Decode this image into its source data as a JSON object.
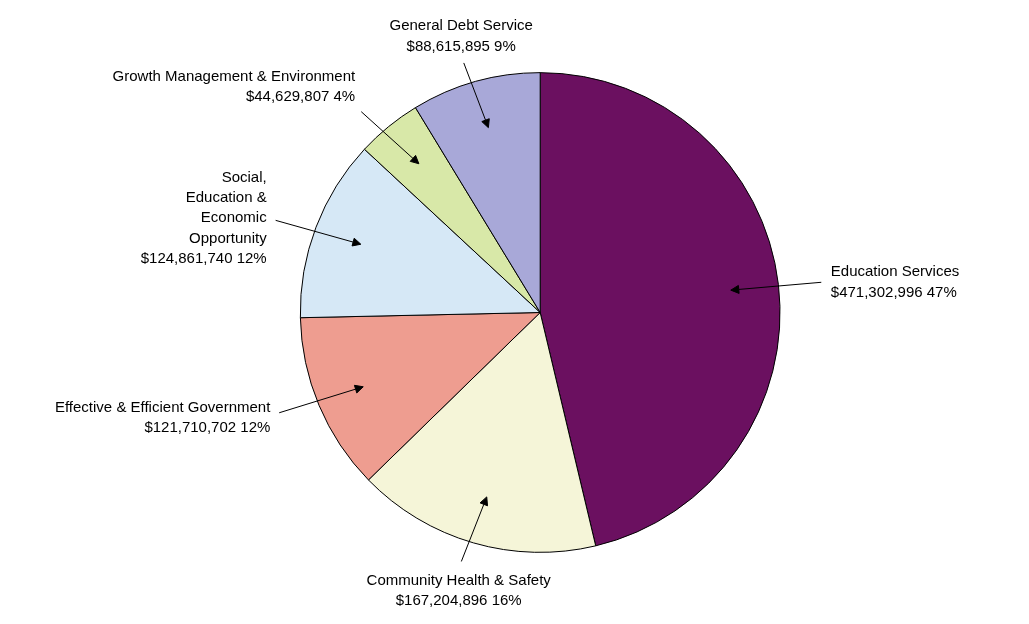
{
  "chart_data": {
    "type": "pie",
    "categories": [
      "Education Services",
      "Community Health & Safety",
      "Effective & Efficient Government",
      "Social, Education & Economic Opportunity",
      "Growth Management & Environment",
      "General Debt Service"
    ],
    "values": [
      471302996,
      167204896,
      121710702,
      124861740,
      44629807,
      88615895
    ],
    "value_labels": [
      "$471,302,996 47%",
      "$167,204,896 16%",
      "$121,710,702 12%",
      "$124,861,740 12%",
      "$44,629,807 4%",
      "$88,615,895 9%"
    ],
    "colors": [
      "#6b1060",
      "#f5f5d8",
      "#ee9d90",
      "#d6e8f6",
      "#d8e8a8",
      "#a8a8d8"
    ]
  }
}
